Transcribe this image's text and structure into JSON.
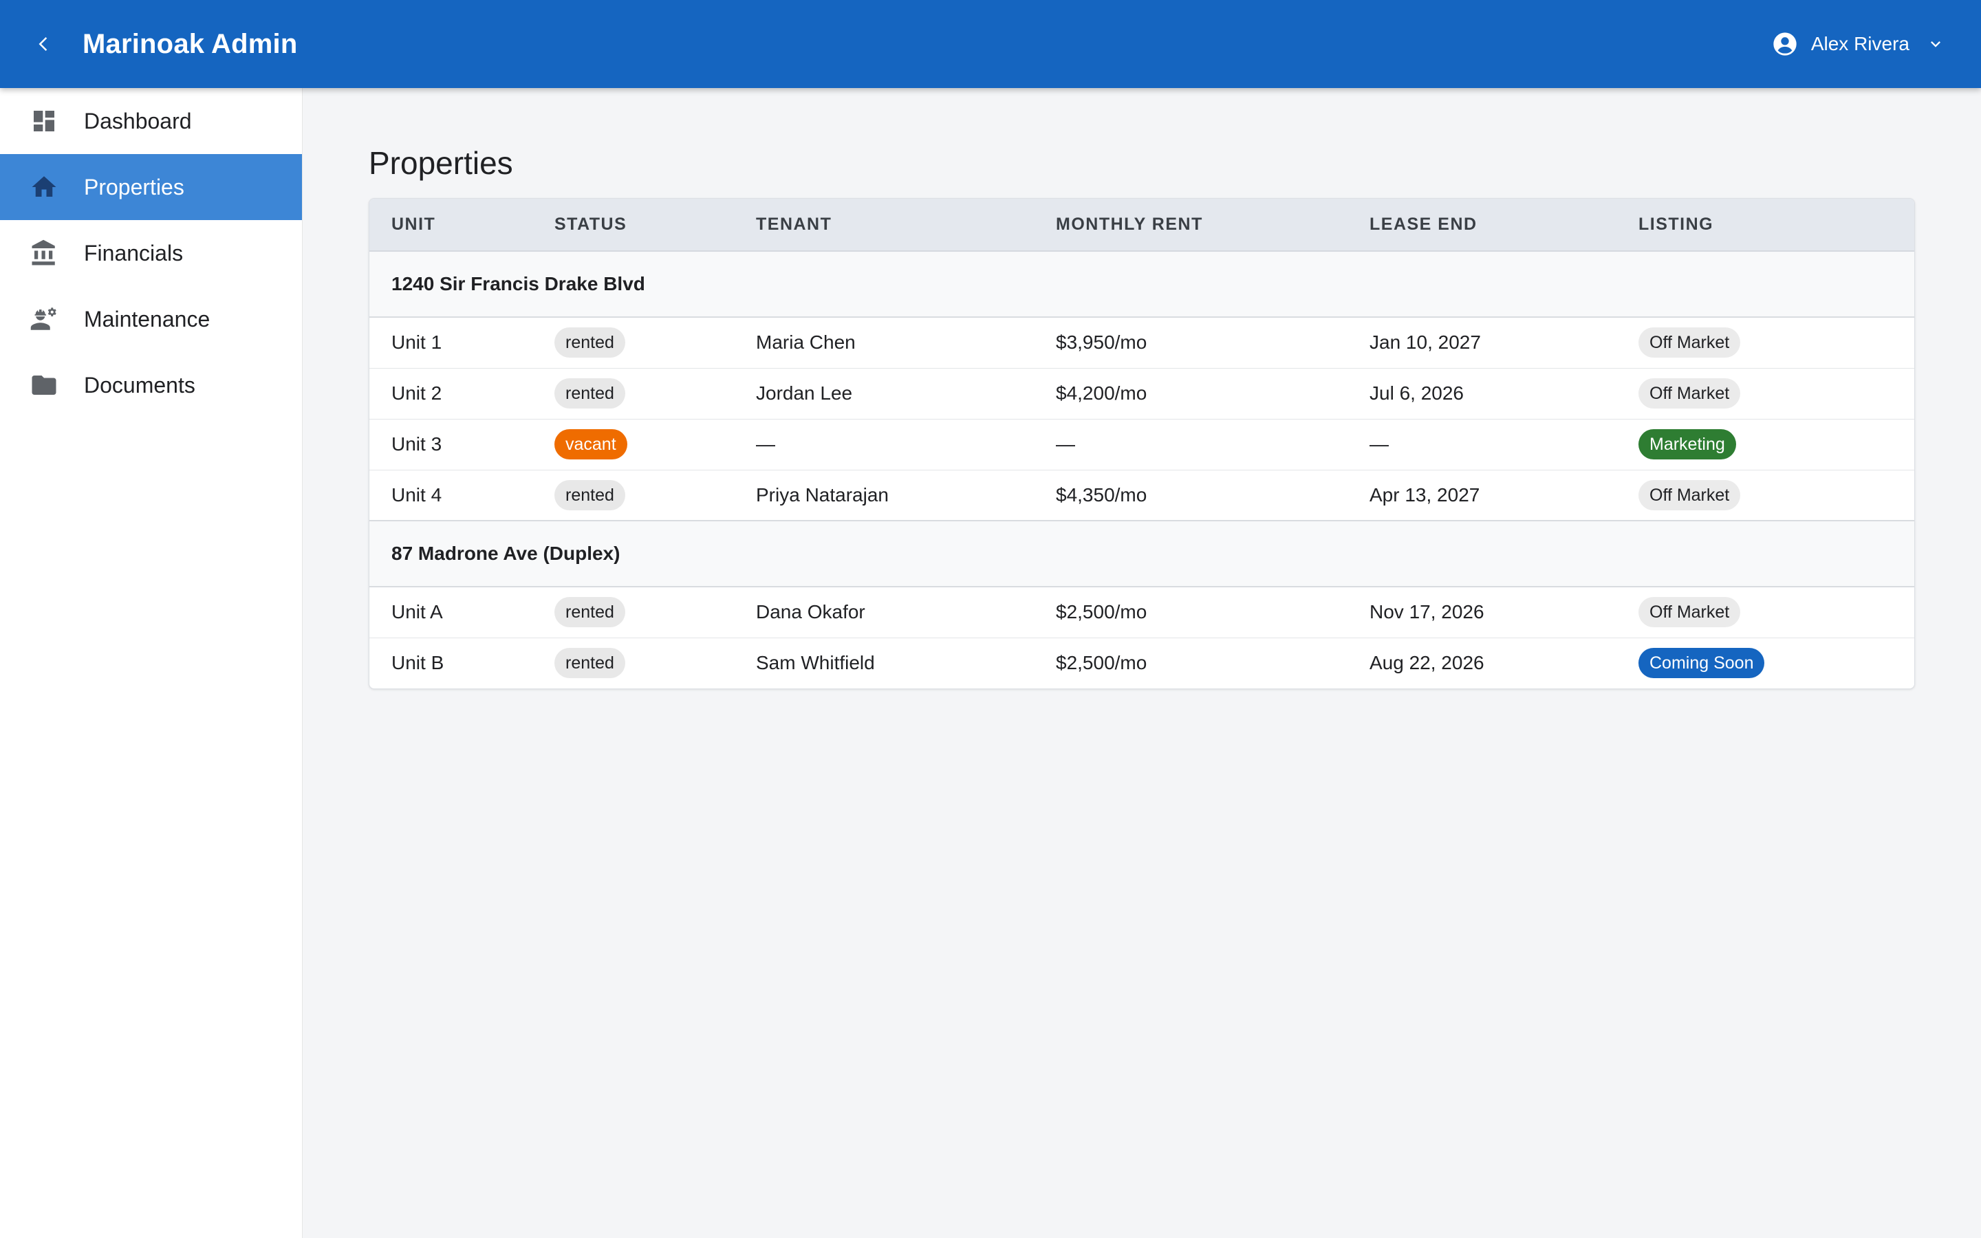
{
  "app": {
    "title": "Marinoak Admin",
    "user_name": "Alex Rivera"
  },
  "sidebar": {
    "items": [
      {
        "label": "Dashboard",
        "icon": "dashboard-icon",
        "active": false
      },
      {
        "label": "Properties",
        "icon": "home-icon",
        "active": true
      },
      {
        "label": "Financials",
        "icon": "bank-icon",
        "active": false
      },
      {
        "label": "Maintenance",
        "icon": "engineer-icon",
        "active": false
      },
      {
        "label": "Documents",
        "icon": "folder-icon",
        "active": false
      }
    ]
  },
  "main": {
    "page_title": "Properties",
    "columns": [
      "UNIT",
      "STATUS",
      "TENANT",
      "MONTHLY RENT",
      "LEASE END",
      "LISTING"
    ],
    "groups": [
      {
        "name": "1240 Sir Francis Drake Blvd",
        "units": [
          {
            "unit": "Unit 1",
            "status": "rented",
            "tenant": "Maria Chen",
            "rent": "$3,950/mo",
            "lease_end": "Jan 10, 2027",
            "listing": "Off Market"
          },
          {
            "unit": "Unit 2",
            "status": "rented",
            "tenant": "Jordan Lee",
            "rent": "$4,200/mo",
            "lease_end": "Jul 6, 2026",
            "listing": "Off Market"
          },
          {
            "unit": "Unit 3",
            "status": "vacant",
            "tenant": "—",
            "rent": "—",
            "lease_end": "—",
            "listing": "Marketing"
          },
          {
            "unit": "Unit 4",
            "status": "rented",
            "tenant": "Priya Natarajan",
            "rent": "$4,350/mo",
            "lease_end": "Apr 13, 2027",
            "listing": "Off Market"
          }
        ]
      },
      {
        "name": "87 Madrone Ave (Duplex)",
        "units": [
          {
            "unit": "Unit A",
            "status": "rented",
            "tenant": "Dana Okafor",
            "rent": "$2,500/mo",
            "lease_end": "Nov 17, 2026",
            "listing": "Off Market"
          },
          {
            "unit": "Unit B",
            "status": "rented",
            "tenant": "Sam Whitfield",
            "rent": "$2,500/mo",
            "lease_end": "Aug 22, 2026",
            "listing": "Coming Soon"
          }
        ]
      }
    ]
  },
  "colors": {
    "topbar": "#1565c0",
    "nav_active": "#3d86d6",
    "vacant": "#ef6c00",
    "marketing": "#2e7d32",
    "coming_soon": "#1565c0"
  }
}
